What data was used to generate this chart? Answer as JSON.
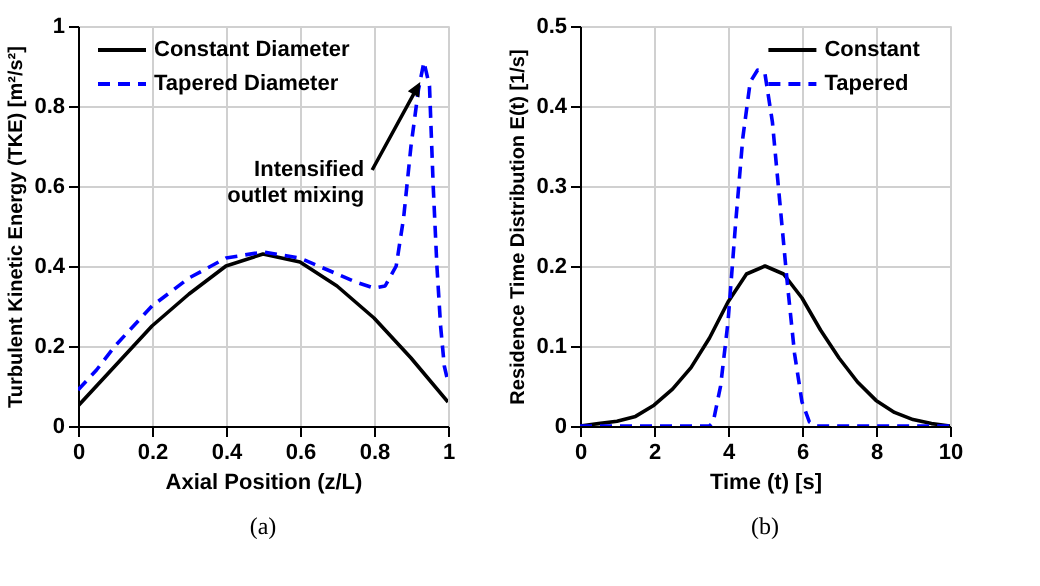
{
  "chart_data": [
    {
      "type": "line",
      "title": "(a)",
      "xlabel": "Axial Position (z/L)",
      "ylabel": "Turbulent Kinetic Energy (TKE) [m²/s²]",
      "xlim": [
        0,
        1
      ],
      "xticks": [
        0,
        0.2,
        0.4,
        0.6,
        0.8,
        1
      ],
      "ylim": [
        0,
        1
      ],
      "yticks": [
        0,
        0.2,
        0.4,
        0.6,
        0.8,
        1
      ],
      "grid": true,
      "legend": "top left",
      "annotations": [
        "Intensified\noutlet mixing"
      ],
      "series": [
        {
          "name": "Constant Diameter",
          "color": "#000000",
          "line_style": "solid",
          "x": [
            0,
            0.1,
            0.2,
            0.3,
            0.4,
            0.5,
            0.6,
            0.7,
            0.8,
            0.9,
            1.0
          ],
          "values": [
            0.05,
            0.15,
            0.25,
            0.33,
            0.4,
            0.43,
            0.41,
            0.35,
            0.27,
            0.17,
            0.06
          ]
        },
        {
          "name": "Tapered Diameter",
          "color": "#0000ff",
          "line_style": "dashed",
          "x": [
            0,
            0.05,
            0.1,
            0.2,
            0.3,
            0.4,
            0.5,
            0.6,
            0.7,
            0.75,
            0.8,
            0.83,
            0.86,
            0.88,
            0.9,
            0.92,
            0.935,
            0.95,
            0.96,
            0.97,
            0.98,
            0.99,
            1.0
          ],
          "values": [
            0.09,
            0.14,
            0.2,
            0.3,
            0.37,
            0.42,
            0.435,
            0.42,
            0.38,
            0.36,
            0.345,
            0.35,
            0.4,
            0.52,
            0.7,
            0.84,
            0.91,
            0.85,
            0.6,
            0.4,
            0.25,
            0.15,
            0.11
          ]
        }
      ]
    },
    {
      "type": "line",
      "title": "(b)",
      "xlabel": "Time (t) [s]",
      "ylabel": "Residence Time Distribution E(t) [1/s]",
      "xlim": [
        0,
        10
      ],
      "xticks": [
        0,
        2,
        4,
        6,
        8,
        10
      ],
      "ylim": [
        0,
        0.5
      ],
      "yticks": [
        0,
        0.1,
        0.2,
        0.3,
        0.4,
        0.5
      ],
      "grid": true,
      "legend": "top right",
      "series": [
        {
          "name": "Constant",
          "color": "#000000",
          "line_style": "solid",
          "x": [
            0,
            0.5,
            1,
            1.5,
            2,
            2.5,
            3,
            3.5,
            4,
            4.5,
            5,
            5.5,
            6,
            6.5,
            7,
            7.5,
            8,
            8.5,
            9,
            9.5,
            10
          ],
          "values": [
            0,
            0.003,
            0.006,
            0.012,
            0.026,
            0.046,
            0.073,
            0.11,
            0.155,
            0.19,
            0.2,
            0.19,
            0.16,
            0.12,
            0.085,
            0.055,
            0.032,
            0.017,
            0.008,
            0.003,
            0
          ]
        },
        {
          "name": "Tapered",
          "color": "#0000ff",
          "line_style": "dashed",
          "x": [
            0,
            3.5,
            3.6,
            3.8,
            4,
            4.2,
            4.4,
            4.6,
            4.8,
            5,
            5.2,
            5.4,
            5.6,
            5.8,
            6,
            6.2,
            6.4,
            10
          ],
          "values": [
            0,
            0,
            0.005,
            0.05,
            0.13,
            0.25,
            0.36,
            0.43,
            0.445,
            0.44,
            0.38,
            0.28,
            0.18,
            0.09,
            0.03,
            0.005,
            0,
            0
          ]
        }
      ]
    }
  ]
}
